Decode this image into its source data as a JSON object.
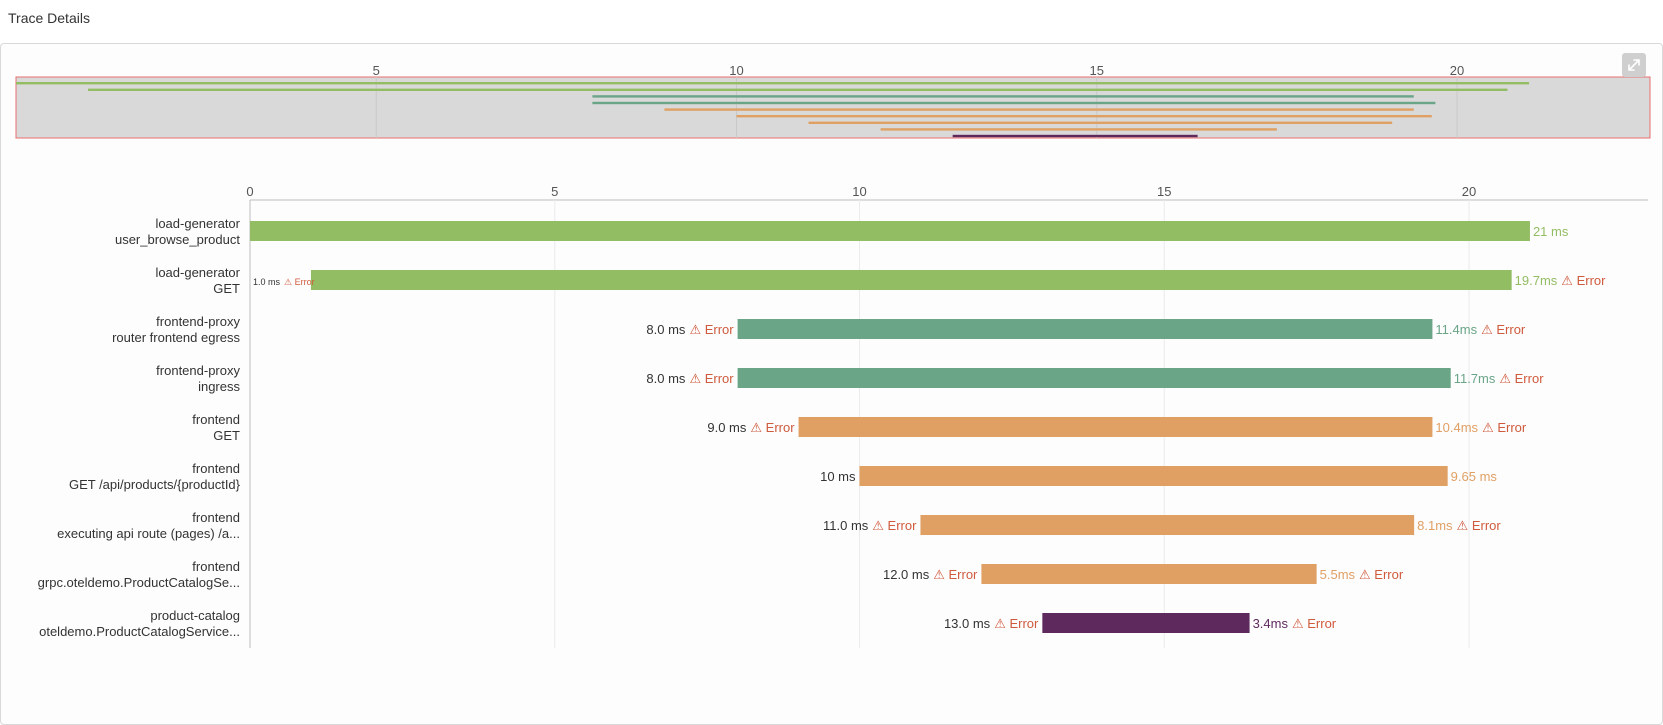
{
  "page": {
    "title": "Trace Details"
  },
  "colors": {
    "load_generator": "#93bd62",
    "frontend_proxy": "#6aa587",
    "frontend": "#e0a064",
    "product_catalog": "#5e2a5e",
    "error": "#cf5a3c",
    "grid": "#ececec",
    "minimap_bg": "#d9d9d9",
    "minimap_border": "#e86e6e"
  },
  "icons": {
    "expand": "expand-icon"
  },
  "chart_data": {
    "type": "bar",
    "subtype": "gantt",
    "title": "",
    "xlabel": "",
    "ylabel": "",
    "xlim": [
      0,
      23
    ],
    "xticks": [
      "0",
      "5",
      "10",
      "15",
      "20"
    ],
    "minimap_xticks": [
      "5",
      "10",
      "15",
      "20"
    ],
    "grid": true,
    "spans": [
      {
        "service": "load-generator",
        "operation": "user_browse_product",
        "start": 0,
        "duration": 21,
        "start_label": "",
        "start_error": "",
        "duration_label": "21 ms",
        "duration_error": "",
        "color": "#93bd62"
      },
      {
        "service": "load-generator",
        "operation": "GET",
        "start": 1,
        "duration": 19.7,
        "start_label": "1.0 ms",
        "start_error": "⚠ Error",
        "duration_label": "19.7ms",
        "duration_error": "⚠ Error",
        "color": "#93bd62"
      },
      {
        "service": "frontend-proxy",
        "operation": "router frontend egress",
        "start": 8,
        "duration": 11.4,
        "start_label": "8.0 ms",
        "start_error": "⚠ Error",
        "duration_label": "11.4ms",
        "duration_error": "⚠ Error",
        "color": "#6aa587"
      },
      {
        "service": "frontend-proxy",
        "operation": "ingress",
        "start": 8,
        "duration": 11.7,
        "start_label": "8.0 ms",
        "start_error": "⚠ Error",
        "duration_label": "11.7ms",
        "duration_error": "⚠ Error",
        "color": "#6aa587"
      },
      {
        "service": "frontend",
        "operation": "GET",
        "start": 9,
        "duration": 10.4,
        "start_label": "9.0 ms",
        "start_error": "⚠ Error",
        "duration_label": "10.4ms",
        "duration_error": "⚠ Error",
        "color": "#e0a064"
      },
      {
        "service": "frontend",
        "operation": "GET /api/products/{productId}",
        "start": 10,
        "duration": 9.65,
        "start_label": "10 ms",
        "start_error": "",
        "duration_label": "9.65 ms",
        "duration_error": "",
        "color": "#e0a064"
      },
      {
        "service": "frontend",
        "operation": "executing api route (pages) /a...",
        "start": 11,
        "duration": 8.1,
        "start_label": "11.0 ms",
        "start_error": "⚠ Error",
        "duration_label": "8.1ms",
        "duration_error": "⚠ Error",
        "color": "#e0a064"
      },
      {
        "service": "frontend",
        "operation": "grpc.oteldemo.ProductCatalogSe...",
        "start": 12,
        "duration": 5.5,
        "start_label": "12.0 ms",
        "start_error": "⚠ Error",
        "duration_label": "5.5ms",
        "duration_error": "⚠ Error",
        "color": "#e0a064"
      },
      {
        "service": "product-catalog",
        "operation": "oteldemo.ProductCatalogService...",
        "start": 13,
        "duration": 3.4,
        "start_label": "13.0 ms",
        "start_error": "⚠ Error",
        "duration_label": "3.4ms",
        "duration_error": "⚠ Error",
        "color": "#5e2a5e"
      }
    ]
  }
}
